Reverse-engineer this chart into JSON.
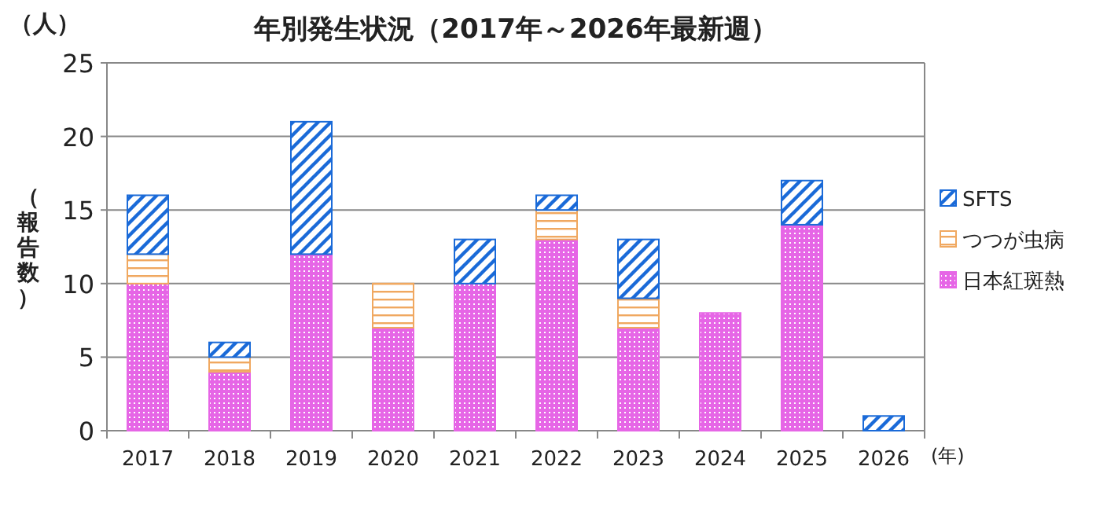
{
  "chart_data": {
    "type": "bar",
    "title": "年別発生状況（2017年～2026年最新週）",
    "ylabel": "（報告数）",
    "xlabel": "(年)",
    "annotations": [
      "（人）"
    ],
    "categories": [
      "2017",
      "2018",
      "2019",
      "2020",
      "2021",
      "2022",
      "2023",
      "2024",
      "2025",
      "2026"
    ],
    "stacked": true,
    "ylim": [
      0,
      25
    ],
    "yticks": [
      0,
      5,
      10,
      15,
      20,
      25
    ],
    "grid": "y",
    "legend": "right",
    "series": [
      {
        "name": "日本紅斑熱",
        "color": "#e666e6",
        "values": [
          10,
          4,
          12,
          7,
          10,
          13,
          7,
          8,
          14,
          0
        ]
      },
      {
        "name": "つつが虫病",
        "color": "#f0a860",
        "values": [
          2,
          1,
          0,
          3,
          0,
          2,
          2,
          0,
          0,
          0
        ]
      },
      {
        "name": "SFTS",
        "color": "#1a6ad8",
        "values": [
          4,
          1,
          9,
          0,
          3,
          1,
          4,
          0,
          3,
          1
        ]
      }
    ]
  }
}
